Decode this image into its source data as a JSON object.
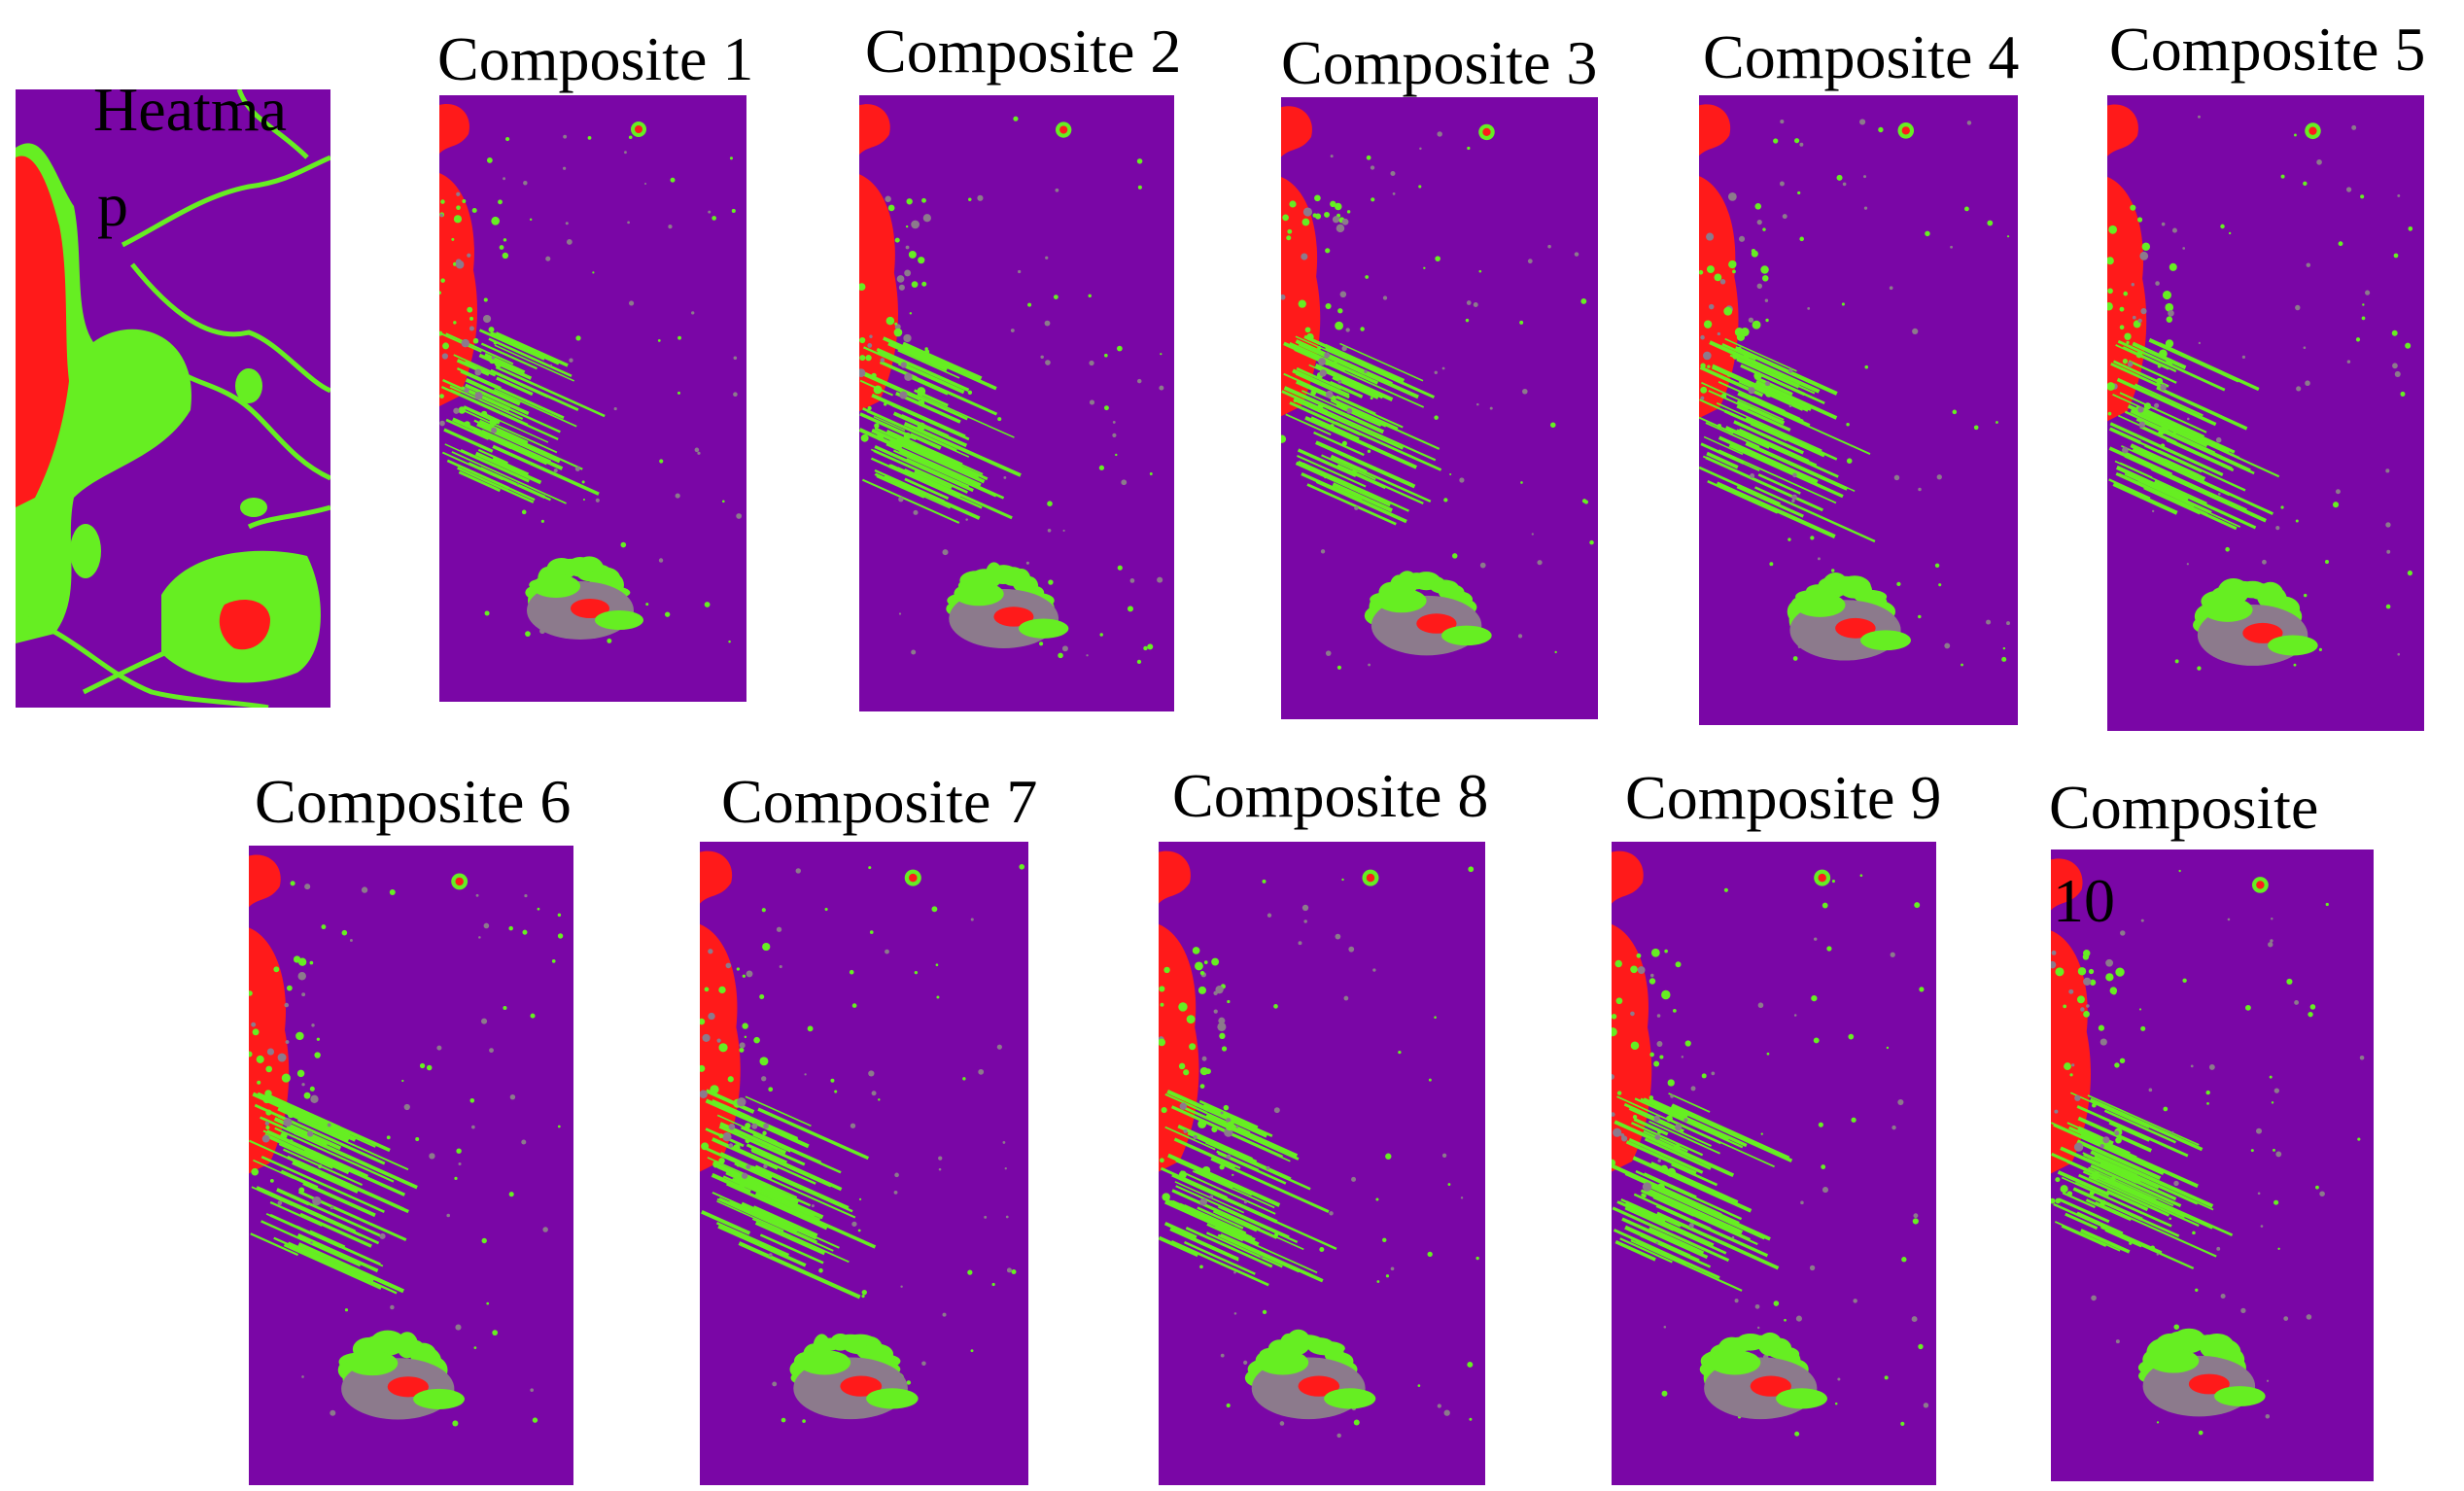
{
  "colors": {
    "background": "#7a06a6",
    "high": "#ff1a1a",
    "medium": "#66ee22",
    "low": "#8c7a8c"
  },
  "heatmap": {
    "label_line1": "Heatma",
    "label_line2": "p"
  },
  "composites": [
    {
      "label": "Composite 1"
    },
    {
      "label": "Composite 2"
    },
    {
      "label": "Composite 3"
    },
    {
      "label": "Composite 4"
    },
    {
      "label": "Composite 5"
    },
    {
      "label": "Composite 6"
    },
    {
      "label": "Composite 7"
    },
    {
      "label": "Composite 8"
    },
    {
      "label": "Composite 9"
    },
    {
      "label_line1": "Composite",
      "label_line2": "10"
    }
  ]
}
